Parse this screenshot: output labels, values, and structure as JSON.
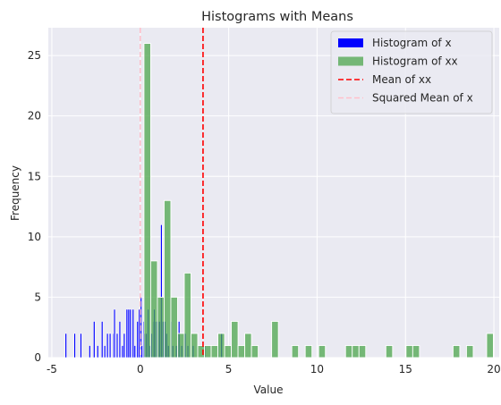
{
  "chart_data": {
    "type": "bar",
    "title": "Histograms with Means",
    "xlabel": "Value",
    "ylabel": "Frequency",
    "xlim": [
      -5.2,
      20.3
    ],
    "ylim": [
      0,
      27.3
    ],
    "xticks": [
      -5,
      0,
      5,
      10,
      15,
      20
    ],
    "yticks": [
      0,
      5,
      10,
      15,
      20,
      25
    ],
    "grid": true,
    "legend_position": "top-right",
    "colors": {
      "background": "#eaeaf2",
      "grid": "#ffffff",
      "hist_x": "#0000ff",
      "hist_xx": "#4ca64c",
      "mean_xx": "#ff0000",
      "squared_mean_x": "#ffc0cb"
    },
    "series": [
      {
        "name": "Histogram of x",
        "bin_width": 0.09,
        "bars": [
          {
            "x": -4.25,
            "y": 2
          },
          {
            "x": -3.75,
            "y": 2
          },
          {
            "x": -3.4,
            "y": 2
          },
          {
            "x": -2.9,
            "y": 1
          },
          {
            "x": -2.65,
            "y": 3
          },
          {
            "x": -2.45,
            "y": 1
          },
          {
            "x": -2.2,
            "y": 3
          },
          {
            "x": -2.05,
            "y": 1
          },
          {
            "x": -1.9,
            "y": 2
          },
          {
            "x": -1.75,
            "y": 2
          },
          {
            "x": -1.55,
            "y": 2
          },
          {
            "x": -1.5,
            "y": 4
          },
          {
            "x": -1.35,
            "y": 2
          },
          {
            "x": -1.2,
            "y": 3
          },
          {
            "x": -1.05,
            "y": 1
          },
          {
            "x": -0.95,
            "y": 2
          },
          {
            "x": -0.8,
            "y": 4
          },
          {
            "x": -0.7,
            "y": 4
          },
          {
            "x": -0.6,
            "y": 4
          },
          {
            "x": -0.45,
            "y": 4
          },
          {
            "x": -0.35,
            "y": 1
          },
          {
            "x": -0.2,
            "y": 3
          },
          {
            "x": -0.1,
            "y": 4
          },
          {
            "x": 0.0,
            "y": 5
          },
          {
            "x": 0.05,
            "y": 1
          },
          {
            "x": 0.15,
            "y": 3
          },
          {
            "x": 0.2,
            "y": 2
          },
          {
            "x": 0.3,
            "y": 2
          },
          {
            "x": 0.4,
            "y": 4
          },
          {
            "x": 0.5,
            "y": 1
          },
          {
            "x": 0.6,
            "y": 2
          },
          {
            "x": 0.7,
            "y": 3
          },
          {
            "x": 0.75,
            "y": 4
          },
          {
            "x": 0.85,
            "y": 3
          },
          {
            "x": 0.95,
            "y": 3
          },
          {
            "x": 1.05,
            "y": 3
          },
          {
            "x": 1.15,
            "y": 11
          },
          {
            "x": 1.25,
            "y": 3
          },
          {
            "x": 1.35,
            "y": 3
          },
          {
            "x": 1.45,
            "y": 2
          },
          {
            "x": 1.55,
            "y": 1
          },
          {
            "x": 1.7,
            "y": 3
          },
          {
            "x": 1.8,
            "y": 1
          },
          {
            "x": 2.0,
            "y": 1
          },
          {
            "x": 2.15,
            "y": 3
          },
          {
            "x": 2.3,
            "y": 1
          },
          {
            "x": 2.5,
            "y": 2
          },
          {
            "x": 2.65,
            "y": 1
          },
          {
            "x": 2.95,
            "y": 1
          },
          {
            "x": 3.6,
            "y": 1
          },
          {
            "x": 4.35,
            "y": 1
          },
          {
            "x": 4.55,
            "y": 2
          }
        ]
      },
      {
        "name": "Histogram of xx",
        "bin_width": 0.38,
        "bars": [
          {
            "x": 0.21,
            "y": 26
          },
          {
            "x": 0.59,
            "y": 8
          },
          {
            "x": 0.97,
            "y": 5
          },
          {
            "x": 1.35,
            "y": 13
          },
          {
            "x": 1.73,
            "y": 5
          },
          {
            "x": 2.11,
            "y": 2
          },
          {
            "x": 2.49,
            "y": 7
          },
          {
            "x": 2.87,
            "y": 2
          },
          {
            "x": 3.25,
            "y": 1
          },
          {
            "x": 3.63,
            "y": 1
          },
          {
            "x": 4.01,
            "y": 1
          },
          {
            "x": 4.39,
            "y": 2
          },
          {
            "x": 4.77,
            "y": 1
          },
          {
            "x": 5.15,
            "y": 3
          },
          {
            "x": 5.53,
            "y": 1
          },
          {
            "x": 5.91,
            "y": 2
          },
          {
            "x": 6.29,
            "y": 1
          },
          {
            "x": 6.67,
            "y": 0
          },
          {
            "x": 7.43,
            "y": 3
          },
          {
            "x": 8.57,
            "y": 1
          },
          {
            "x": 9.33,
            "y": 1
          },
          {
            "x": 10.09,
            "y": 1
          },
          {
            "x": 11.61,
            "y": 1
          },
          {
            "x": 11.99,
            "y": 1
          },
          {
            "x": 12.37,
            "y": 1
          },
          {
            "x": 13.89,
            "y": 1
          },
          {
            "x": 15.03,
            "y": 1
          },
          {
            "x": 15.41,
            "y": 1
          },
          {
            "x": 17.69,
            "y": 1
          },
          {
            "x": 18.45,
            "y": 1
          },
          {
            "x": 19.59,
            "y": 2
          }
        ]
      }
    ],
    "lines": [
      {
        "name": "Mean of xx",
        "x": 3.55,
        "color": "#ff0000",
        "style": "dashed"
      },
      {
        "name": "Squared Mean of x",
        "x": 0.0,
        "color": "#ffc0cb",
        "style": "dashed"
      }
    ],
    "legend": [
      {
        "label": "Histogram of x",
        "kind": "patch",
        "color": "#0000ff"
      },
      {
        "label": "Histogram of xx",
        "kind": "patch",
        "color": "#4ca64c"
      },
      {
        "label": "Mean of xx",
        "kind": "line",
        "color": "#ff0000"
      },
      {
        "label": "Squared Mean of x",
        "kind": "line",
        "color": "#ffc0cb"
      }
    ]
  }
}
